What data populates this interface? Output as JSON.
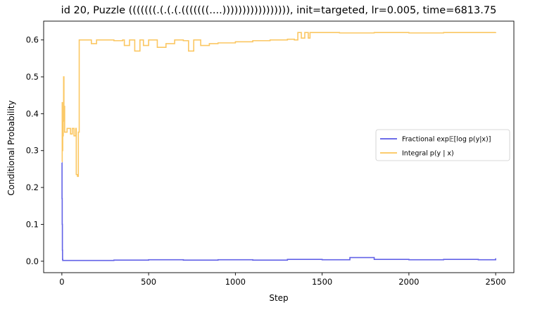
{
  "chart_data": {
    "type": "line",
    "title": "id 20, Puzzle (((((((.(.(.(.(((((((....))))))))))))))))), init=targeted, lr=0.005, time=6813.75",
    "xlabel": "Step",
    "ylabel": "Conditional Probability",
    "xlim": [
      -105,
      2605
    ],
    "ylim": [
      -0.031,
      0.651
    ],
    "xticks": [
      0,
      500,
      1000,
      1500,
      2000,
      2500
    ],
    "xtick_labels": [
      "0",
      "500",
      "1000",
      "1500",
      "2000",
      "2500"
    ],
    "yticks": [
      0.0,
      0.1,
      0.2,
      0.3,
      0.4,
      0.5,
      0.6
    ],
    "ytick_labels": [
      "0.0",
      "0.1",
      "0.2",
      "0.3",
      "0.4",
      "0.5",
      "0.6"
    ],
    "grid": false,
    "legend": {
      "placement": "center-right"
    },
    "series": [
      {
        "name": "Fractional exp𝔼[log p(y|x)]",
        "color": "#5a5ae6",
        "points": [
          [
            0,
            0.267
          ],
          [
            1,
            0.17
          ],
          [
            2,
            0.1
          ],
          [
            3,
            0.03
          ],
          [
            4,
            0.005
          ],
          [
            5,
            0.002
          ],
          [
            100,
            0.002
          ],
          [
            300,
            0.003
          ],
          [
            500,
            0.004
          ],
          [
            700,
            0.003
          ],
          [
            900,
            0.004
          ],
          [
            1100,
            0.003
          ],
          [
            1300,
            0.005
          ],
          [
            1500,
            0.004
          ],
          [
            1660,
            0.01
          ],
          [
            1800,
            0.005
          ],
          [
            2000,
            0.004
          ],
          [
            2200,
            0.005
          ],
          [
            2400,
            0.004
          ],
          [
            2500,
            0.008
          ]
        ]
      },
      {
        "name": "Integral p(y | x)",
        "color": "#fbc45a",
        "points": [
          [
            0,
            0.27
          ],
          [
            2,
            0.43
          ],
          [
            3,
            0.3
          ],
          [
            5,
            0.34
          ],
          [
            8,
            0.38
          ],
          [
            10,
            0.5
          ],
          [
            12,
            0.42
          ],
          [
            16,
            0.35
          ],
          [
            30,
            0.36
          ],
          [
            50,
            0.345
          ],
          [
            60,
            0.36
          ],
          [
            70,
            0.34
          ],
          [
            80,
            0.36
          ],
          [
            83,
            0.235
          ],
          [
            90,
            0.23
          ],
          [
            95,
            0.35
          ],
          [
            100,
            0.6
          ],
          [
            150,
            0.6
          ],
          [
            170,
            0.59
          ],
          [
            200,
            0.6
          ],
          [
            300,
            0.598
          ],
          [
            350,
            0.6
          ],
          [
            360,
            0.585
          ],
          [
            390,
            0.6
          ],
          [
            420,
            0.57
          ],
          [
            450,
            0.6
          ],
          [
            470,
            0.585
          ],
          [
            500,
            0.6
          ],
          [
            550,
            0.58
          ],
          [
            600,
            0.59
          ],
          [
            650,
            0.6
          ],
          [
            700,
            0.598
          ],
          [
            730,
            0.57
          ],
          [
            760,
            0.6
          ],
          [
            800,
            0.585
          ],
          [
            850,
            0.59
          ],
          [
            900,
            0.592
          ],
          [
            1000,
            0.595
          ],
          [
            1100,
            0.598
          ],
          [
            1200,
            0.6
          ],
          [
            1300,
            0.602
          ],
          [
            1340,
            0.6
          ],
          [
            1360,
            0.62
          ],
          [
            1380,
            0.605
          ],
          [
            1400,
            0.62
          ],
          [
            1420,
            0.605
          ],
          [
            1430,
            0.62
          ],
          [
            1600,
            0.619
          ],
          [
            1800,
            0.62
          ],
          [
            2000,
            0.619
          ],
          [
            2200,
            0.62
          ],
          [
            2500,
            0.621
          ]
        ]
      }
    ]
  }
}
